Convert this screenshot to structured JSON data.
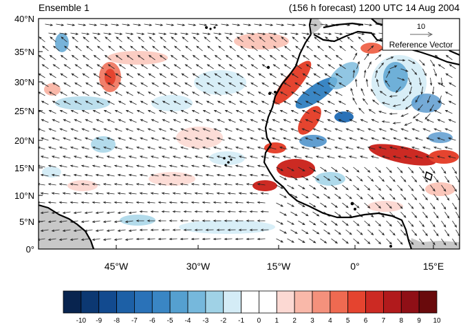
{
  "header": {
    "left_title": "Ensemble 1",
    "right_title": "(156 h forecast) 1200 UTC 14 Aug 2004"
  },
  "map": {
    "lat_labels": [
      "40°N",
      "35°N",
      "30°N",
      "25°N",
      "20°N",
      "15°N",
      "10°N",
      "5°N",
      "0°"
    ],
    "lon_labels": [
      "45°W",
      "30°W",
      "15°W",
      "0°",
      "15°E"
    ],
    "extent": {
      "lon": [
        -57,
        20
      ],
      "lat": [
        0,
        40
      ]
    },
    "land_color": "#c8c8c8",
    "reference_vector": {
      "magnitude": "10",
      "label": "Reference Vector"
    }
  },
  "colorbar": {
    "ticks": [
      "-10",
      "-9",
      "-8",
      "-7",
      "-6",
      "-5",
      "-4",
      "-3",
      "-2",
      "-1",
      "0",
      "1",
      "2",
      "3",
      "4",
      "5",
      "6",
      "7",
      "8",
      "9",
      "10"
    ],
    "colors": [
      "#08244f",
      "#0c3872",
      "#124a8f",
      "#1d60a6",
      "#2a72b8",
      "#3a86c4",
      "#55a0d0",
      "#76b8dc",
      "#a0d2e6",
      "#d4ecf6",
      "#ffffff",
      "#ffffff",
      "#fcd9d3",
      "#f9b8a9",
      "#f4917c",
      "#ef6a51",
      "#e5442f",
      "#cc2a23",
      "#b11a1c",
      "#8f0f16",
      "#690a0c"
    ]
  }
}
